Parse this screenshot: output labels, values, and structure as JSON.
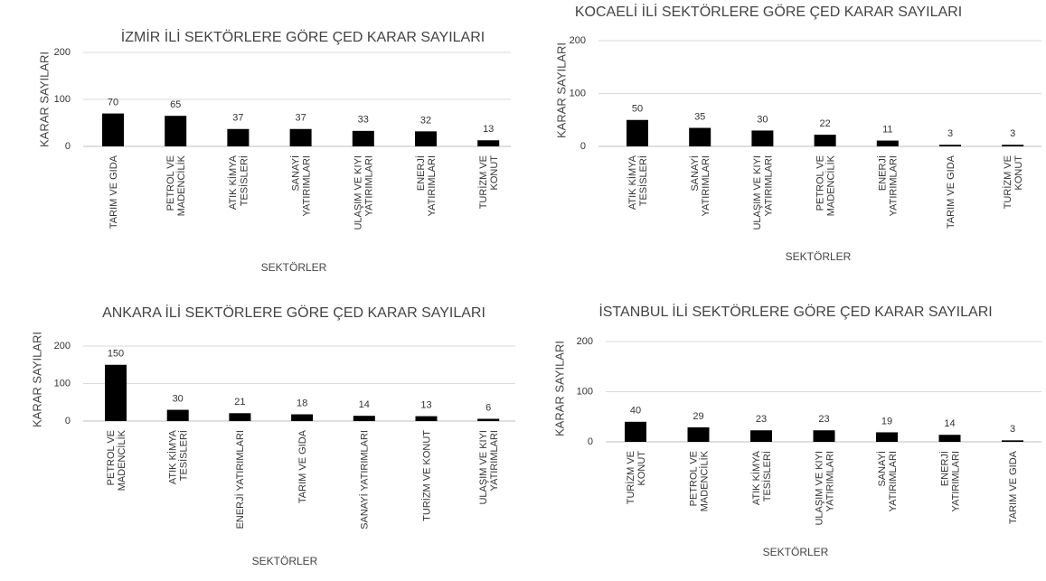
{
  "chart_data": [
    {
      "type": "bar",
      "title": "İZMİR İLİ SEKTÖRLERE GÖRE ÇED KARAR SAYILARI",
      "xlabel": "SEKTÖRLER",
      "ylabel": "KARAR SAYILARI",
      "categories": [
        "TARIM VE GIDA",
        "PETROL VE\nMADENCİLİK",
        "ATIK KİMYA\nTESİSLERİ",
        "SANAYİ\nYATIRIMLARI",
        "ULAŞIM VE KIYI\nYATIRIMLARI",
        "ENERJİ\nYATIRIMLARI",
        "TURİZM VE\nKONUT"
      ],
      "values": [
        70,
        65,
        37,
        37,
        33,
        32,
        13
      ],
      "color": "#000000",
      "ylim": [
        0,
        200
      ],
      "yticks": [
        0,
        100,
        200
      ],
      "grid": true
    },
    {
      "type": "bar",
      "title": "KOCAELİ İLİ SEKTÖRLERE GÖRE ÇED KARAR SAYILARI",
      "xlabel": "SEKTÖRLER",
      "ylabel": "KARAR SAYILARI",
      "categories": [
        "ATIK KİMYA\nTESİSLERİ",
        "SANAYİ\nYATIRIMLARI",
        "ULAŞIM VE KIYI\nYATIRIMLARI",
        "PETROL VE\nMADENCİLİK",
        "ENERJİ\nYATIRIMLARI",
        "TARIM VE GIDA",
        "TURİZM VE\nKONUT"
      ],
      "values": [
        50,
        35,
        30,
        22,
        11,
        3,
        3
      ],
      "color": "#000000",
      "ylim": [
        0,
        200
      ],
      "yticks": [
        0,
        100,
        200
      ],
      "grid": true
    },
    {
      "type": "bar",
      "title": "ANKARA İLİ SEKTÖRLERE GÖRE ÇED KARAR SAYILARI",
      "xlabel": "SEKTÖRLER",
      "ylabel": "KARAR SAYILARI",
      "categories": [
        "PETROL VE\nMADENCİLİK",
        "ATIK KİMYA\nTESİSLERİ",
        "ENERJİ YATIRIMLARI",
        "TARIM VE GIDA",
        "SANAYİ YATIRIMLARI",
        "TURİZM VE KONUT",
        "ULAŞIM VE KIYI\nYATIRIMLARI"
      ],
      "values": [
        150,
        30,
        21,
        18,
        14,
        13,
        6
      ],
      "color": "#000000",
      "ylim": [
        0,
        200
      ],
      "yticks": [
        0,
        100,
        200
      ],
      "grid": true
    },
    {
      "type": "bar",
      "title": "İSTANBUL İLİ SEKTÖRLERE GÖRE ÇED KARAR SAYILARI",
      "xlabel": "SEKTÖRLER",
      "ylabel": "KARAR SAYILARI",
      "categories": [
        "TURİZM VE\nKONUT",
        "PETROL VE\nMADENCİLİK",
        "ATIK KİMYA\nTESİSLERİ",
        "ULAŞIM VE KIYI\nYATIRIMLARI",
        "SANAYİ\nYATIRIMLARI",
        "ENERJİ\nYATIRIMLARI",
        "TARIM VE GIDA"
      ],
      "values": [
        40,
        29,
        23,
        23,
        19,
        14,
        3
      ],
      "color": "#000000",
      "ylim": [
        0,
        200
      ],
      "yticks": [
        0,
        100,
        200
      ],
      "grid": true
    }
  ]
}
